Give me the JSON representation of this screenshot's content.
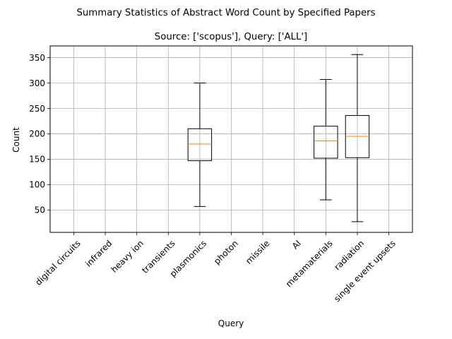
{
  "chart_data": {
    "type": "boxplot",
    "suptitle": "Summary Statistics of Abstract Word Count by Specified Papers",
    "title": "Source: ['scopus'], Query: ['ALL']",
    "xlabel": "Query",
    "ylabel": "Count",
    "ylim": [
      6,
      373
    ],
    "yticks": [
      50,
      100,
      150,
      200,
      250,
      300,
      350
    ],
    "grid": true,
    "colors": {
      "box": "#000000",
      "median": "#ff7f0e",
      "grid": "#b0b0b0"
    },
    "categories": [
      "digital circuits",
      "infrared",
      "heavy ion",
      "transients",
      "plasmonics",
      "photon",
      "missile",
      "AI",
      "metamaterials",
      "radiation",
      "single event upsets"
    ],
    "boxes": [
      null,
      null,
      null,
      null,
      {
        "whisker_low": 57,
        "q1": 147,
        "median": 180,
        "q3": 210,
        "whisker_high": 300
      },
      null,
      null,
      null,
      {
        "whisker_low": 70,
        "q1": 152,
        "median": 186,
        "q3": 215,
        "whisker_high": 307
      },
      {
        "whisker_low": 27,
        "q1": 153,
        "median": 195,
        "q3": 236,
        "whisker_high": 356
      },
      null
    ]
  }
}
